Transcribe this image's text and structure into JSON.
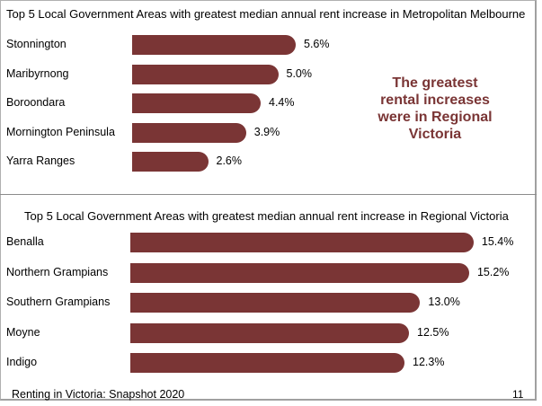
{
  "chart_data": [
    {
      "type": "bar",
      "orientation": "horizontal",
      "title": "Top 5 Local Government Areas with greatest median annual rent increase in Metropolitan Melbourne",
      "categories": [
        "Stonnington",
        "Maribyrnong",
        "Boroondara",
        "Mornington Peninsula",
        "Yarra Ranges"
      ],
      "values": [
        5.6,
        5.0,
        4.4,
        3.9,
        2.6
      ],
      "value_labels": [
        "5.6%",
        "5.0%",
        "4.4%",
        "3.9%",
        "2.6%"
      ],
      "color": "#7a3535"
    },
    {
      "type": "bar",
      "orientation": "horizontal",
      "title": "Top 5 Local Government Areas with greatest median annual rent increase in Regional Victoria",
      "categories": [
        "Benalla",
        "Northern Grampians",
        "Southern Grampians",
        "Moyne",
        "Indigo"
      ],
      "values": [
        15.4,
        15.2,
        13.0,
        12.5,
        12.3
      ],
      "value_labels": [
        "15.4%",
        "15.2%",
        "13.0%",
        "12.5%",
        "12.3%"
      ],
      "color": "#7a3535"
    }
  ],
  "callout": {
    "lines": [
      "The greatest",
      "rental increases",
      "were in Regional",
      "Victoria"
    ]
  },
  "footer": {
    "left": "Renting in Victoria: Snapshot 2020",
    "page": "11"
  }
}
